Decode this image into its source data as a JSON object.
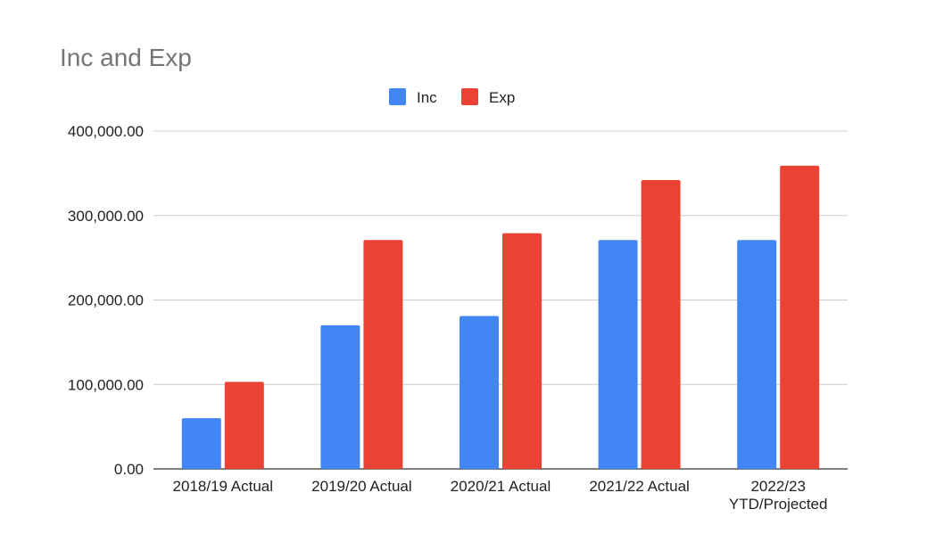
{
  "chart_data": {
    "type": "bar",
    "title": "Inc and Exp",
    "categories": [
      [
        "2018/19 Actual"
      ],
      [
        "2019/20 Actual"
      ],
      [
        "2020/21 Actual"
      ],
      [
        "2021/22 Actual"
      ],
      [
        "2022/23",
        "YTD/Projected"
      ]
    ],
    "series": [
      {
        "name": "Inc",
        "color": "#4285f4",
        "values": [
          60000,
          170000,
          181000,
          271000,
          271000
        ]
      },
      {
        "name": "Exp",
        "color": "#ea4335",
        "values": [
          103000,
          271000,
          279000,
          342000,
          359000
        ]
      }
    ],
    "ylim": [
      0,
      400000
    ],
    "yticks": [
      "0.00",
      "100,000.00",
      "200,000.00",
      "300,000.00",
      "400,000.00"
    ],
    "grid": true,
    "legend": "top"
  }
}
